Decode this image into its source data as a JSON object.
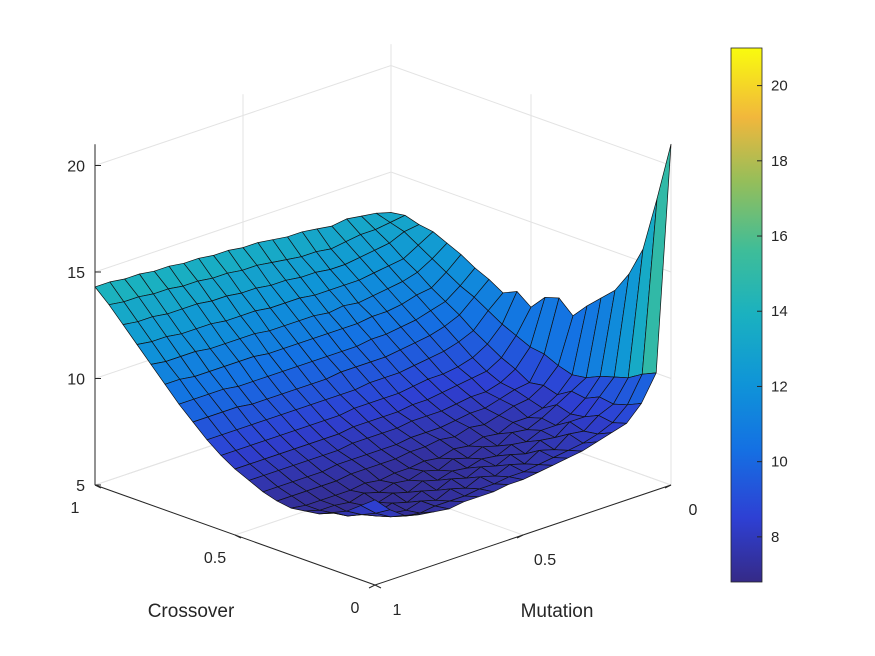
{
  "chart_data": {
    "type": "surface",
    "xlabel": "Crossover",
    "ylabel": "Mutation",
    "zlabel": "",
    "title": "",
    "xlim": [
      0,
      1
    ],
    "ylim": [
      0,
      1
    ],
    "zlim": [
      5,
      21
    ],
    "x_ticks": [
      "0",
      "0.5",
      "1"
    ],
    "y_ticks": [
      "0",
      "0.5",
      "1"
    ],
    "z_ticks": [
      "5",
      "10",
      "15",
      "20"
    ],
    "colorbar": {
      "range": [
        6.8,
        21
      ],
      "ticks": [
        "8",
        "10",
        "12",
        "14",
        "16",
        "18",
        "20"
      ],
      "colormap": "parula"
    },
    "grid": true,
    "surface": {
      "x": [
        0,
        0.05,
        0.1,
        0.15,
        0.2,
        0.25,
        0.3,
        0.35,
        0.4,
        0.45,
        0.5,
        0.55,
        0.6,
        0.65,
        0.7,
        0.75,
        0.8,
        0.85,
        0.9,
        0.95,
        1
      ],
      "y": [
        0,
        0.05,
        0.1,
        0.15,
        0.2,
        0.25,
        0.3,
        0.35,
        0.4,
        0.45,
        0.5,
        0.55,
        0.6,
        0.65,
        0.7,
        0.75,
        0.8,
        0.85,
        0.9,
        0.95,
        1
      ],
      "description_of_values": "Approximate fitness values: bowl-shaped surface, minimum ~7 near crossover 0.3 / mutation 0.5, rising to ~14 at crossover=1 and mutation=1, and spiking to ~21 at crossover=0 with mutation near 0",
      "z": [
        [
          21.0,
          18.2,
          15.6,
          14.2,
          13.2,
          12.6,
          12.0,
          11.3,
          11.9,
          11.7,
          11.0,
          11.5,
          11.2,
          11.6,
          11.9,
          12.3,
          12.6,
          12.9,
          13.0,
          13.2,
          13.1
        ],
        [
          10.5,
          10.2,
          9.8,
          9.6,
          9.4,
          9.1,
          9.0,
          9.2,
          9.5,
          9.6,
          9.9,
          10.2,
          10.6,
          11.0,
          11.3,
          11.7,
          12.1,
          12.5,
          12.9,
          13.1,
          13.3
        ],
        [
          9.3,
          9.0,
          8.8,
          8.9,
          8.6,
          8.7,
          8.3,
          8.5,
          8.4,
          8.8,
          9.1,
          9.5,
          9.9,
          10.4,
          10.8,
          11.2,
          11.7,
          12.1,
          12.6,
          13.0,
          13.4
        ],
        [
          8.6,
          8.4,
          8.5,
          8.2,
          8.1,
          8.3,
          7.9,
          8.1,
          8.3,
          8.4,
          8.7,
          9.1,
          9.6,
          10.1,
          10.6,
          11.1,
          11.5,
          12.0,
          12.5,
          13.0,
          13.5
        ],
        [
          8.4,
          8.1,
          8.0,
          8.2,
          7.8,
          7.9,
          7.7,
          8.0,
          8.1,
          8.2,
          8.6,
          8.9,
          9.4,
          9.9,
          10.4,
          10.9,
          11.4,
          11.9,
          12.4,
          12.9,
          13.4
        ],
        [
          8.2,
          7.9,
          8.1,
          7.7,
          7.8,
          7.6,
          7.7,
          7.8,
          7.9,
          8.2,
          8.5,
          8.8,
          9.3,
          9.8,
          10.3,
          10.8,
          11.3,
          11.8,
          12.3,
          12.8,
          13.5
        ],
        [
          8.0,
          7.8,
          7.6,
          7.8,
          7.5,
          7.7,
          7.4,
          7.6,
          7.9,
          8.1,
          8.4,
          8.8,
          9.2,
          9.7,
          10.2,
          10.8,
          11.2,
          11.8,
          12.3,
          12.9,
          13.6
        ],
        [
          7.9,
          7.7,
          7.8,
          7.4,
          7.6,
          7.3,
          7.5,
          7.7,
          7.8,
          8.0,
          8.3,
          8.7,
          9.1,
          9.6,
          10.2,
          10.7,
          11.3,
          11.8,
          12.4,
          12.9,
          13.6
        ],
        [
          7.8,
          7.6,
          7.4,
          7.6,
          7.3,
          7.5,
          7.3,
          7.5,
          7.7,
          8.0,
          8.3,
          8.6,
          9.1,
          9.6,
          10.1,
          10.7,
          11.2,
          11.8,
          12.4,
          13.0,
          13.7
        ],
        [
          7.7,
          7.5,
          7.6,
          7.3,
          7.4,
          7.2,
          7.4,
          7.6,
          7.7,
          8.0,
          8.2,
          8.6,
          9.1,
          9.6,
          10.1,
          10.7,
          11.3,
          11.9,
          12.5,
          13.1,
          13.8
        ],
        [
          7.6,
          7.5,
          7.3,
          7.5,
          7.2,
          7.4,
          7.2,
          7.5,
          7.7,
          7.9,
          8.2,
          8.6,
          9.0,
          9.6,
          10.1,
          10.7,
          11.3,
          11.9,
          12.5,
          13.2,
          13.8
        ],
        [
          7.6,
          7.4,
          7.5,
          7.2,
          7.3,
          7.1,
          7.3,
          7.5,
          7.6,
          7.9,
          8.2,
          8.6,
          9.0,
          9.5,
          10.1,
          10.7,
          11.3,
          11.9,
          12.6,
          13.2,
          13.9
        ],
        [
          7.5,
          7.4,
          7.2,
          7.4,
          7.1,
          7.3,
          7.2,
          7.4,
          7.6,
          7.9,
          8.2,
          8.5,
          9.0,
          9.5,
          10.1,
          10.7,
          11.3,
          12.0,
          12.6,
          13.3,
          13.9
        ],
        [
          7.5,
          7.3,
          7.4,
          7.1,
          7.3,
          7.1,
          7.2,
          7.4,
          7.6,
          7.9,
          8.1,
          8.5,
          9.0,
          9.5,
          10.1,
          10.7,
          11.4,
          12.0,
          12.7,
          13.3,
          14.0
        ],
        [
          7.5,
          7.3,
          7.1,
          7.3,
          7.0,
          7.2,
          7.1,
          7.4,
          7.6,
          7.8,
          8.1,
          8.5,
          9.0,
          9.5,
          10.1,
          10.8,
          11.4,
          12.0,
          12.7,
          13.4,
          14.0
        ],
        [
          7.4,
          7.3,
          7.3,
          7.0,
          7.2,
          7.0,
          7.2,
          7.4,
          7.6,
          7.8,
          8.1,
          8.5,
          9.0,
          9.5,
          10.1,
          10.8,
          11.4,
          12.1,
          12.8,
          13.4,
          14.1
        ],
        [
          7.5,
          7.2,
          7.1,
          7.2,
          7.0,
          7.2,
          7.1,
          7.3,
          7.5,
          7.8,
          8.1,
          8.5,
          9.0,
          9.5,
          10.1,
          10.8,
          11.4,
          12.1,
          12.8,
          13.5,
          14.1
        ],
        [
          7.6,
          7.3,
          7.2,
          7.0,
          7.1,
          7.0,
          7.1,
          7.3,
          7.5,
          7.8,
          8.1,
          8.5,
          9.0,
          9.6,
          10.2,
          10.8,
          11.5,
          12.1,
          12.8,
          13.5,
          14.2
        ],
        [
          7.8,
          7.5,
          7.3,
          7.2,
          7.0,
          7.1,
          7.1,
          7.3,
          7.5,
          7.8,
          8.1,
          8.5,
          9.0,
          9.6,
          10.2,
          10.8,
          11.5,
          12.2,
          12.9,
          13.6,
          14.2
        ],
        [
          8.3,
          7.9,
          7.6,
          7.3,
          7.2,
          7.1,
          7.1,
          7.3,
          7.5,
          7.8,
          8.1,
          8.5,
          9.0,
          9.6,
          10.2,
          10.9,
          11.5,
          12.2,
          12.9,
          13.6,
          14.3
        ],
        [
          9.0,
          8.5,
          8.0,
          7.7,
          7.4,
          7.3,
          7.2,
          7.3,
          7.5,
          7.8,
          8.1,
          8.5,
          9.0,
          9.6,
          10.2,
          10.9,
          11.6,
          12.3,
          13.0,
          13.7,
          14.3
        ]
      ]
    }
  }
}
